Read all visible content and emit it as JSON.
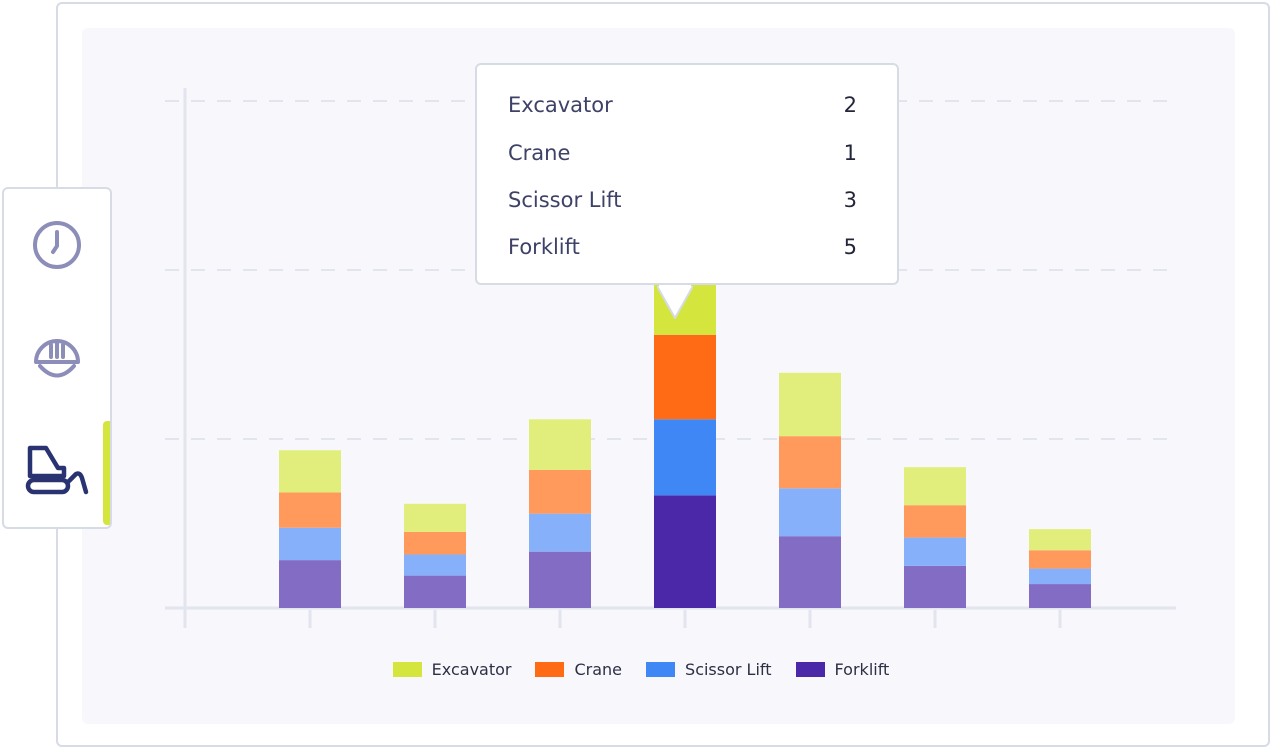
{
  "sidebar": {
    "items": [
      {
        "icon": "clock-icon",
        "active": false
      },
      {
        "icon": "hard-hat-icon",
        "active": false
      },
      {
        "icon": "bulldozer-icon",
        "active": true
      }
    ],
    "active_color": "#d4e63e"
  },
  "tooltip": {
    "rows": [
      {
        "label": "Excavator",
        "value": "2"
      },
      {
        "label": "Crane",
        "value": "1"
      },
      {
        "label": "Scissor Lift",
        "value": "3"
      },
      {
        "label": "Forklift",
        "value": "5"
      }
    ]
  },
  "chart_data": {
    "type": "bar",
    "stacked": true,
    "grid": true,
    "ylim": [
      0,
      36
    ],
    "highlighted_index": 3,
    "categories": [
      "",
      "",
      "",
      "",
      "",
      "",
      ""
    ],
    "series": [
      {
        "name": "Forklift",
        "color": "#826cc4",
        "highlight_color": "#4b28a8",
        "values": [
          3.4,
          2.3,
          4.0,
          8.0,
          5.1,
          3.0,
          1.7
        ]
      },
      {
        "name": "Scissor Lift",
        "color": "#86b1fa",
        "highlight_color": "#3f87f5",
        "values": [
          2.3,
          1.5,
          2.7,
          5.4,
          3.4,
          2.0,
          1.1
        ]
      },
      {
        "name": "Crane",
        "color": "#ff9a5c",
        "highlight_color": "#ff6a14",
        "values": [
          2.5,
          1.6,
          3.1,
          6.0,
          3.7,
          2.3,
          1.3
        ]
      },
      {
        "name": "Excavator",
        "color": "#e1ee7b",
        "highlight_color": "#d4e63e",
        "values": [
          3.0,
          2.0,
          3.6,
          7.0,
          4.5,
          2.7,
          1.5
        ]
      }
    ],
    "legend": [
      "Excavator",
      "Crane",
      "Scissor Lift",
      "Forklift"
    ],
    "legend_colors": [
      "#d4e63e",
      "#ff6a14",
      "#3f87f5",
      "#4b28a8"
    ],
    "legend_position": "bottom-center"
  }
}
